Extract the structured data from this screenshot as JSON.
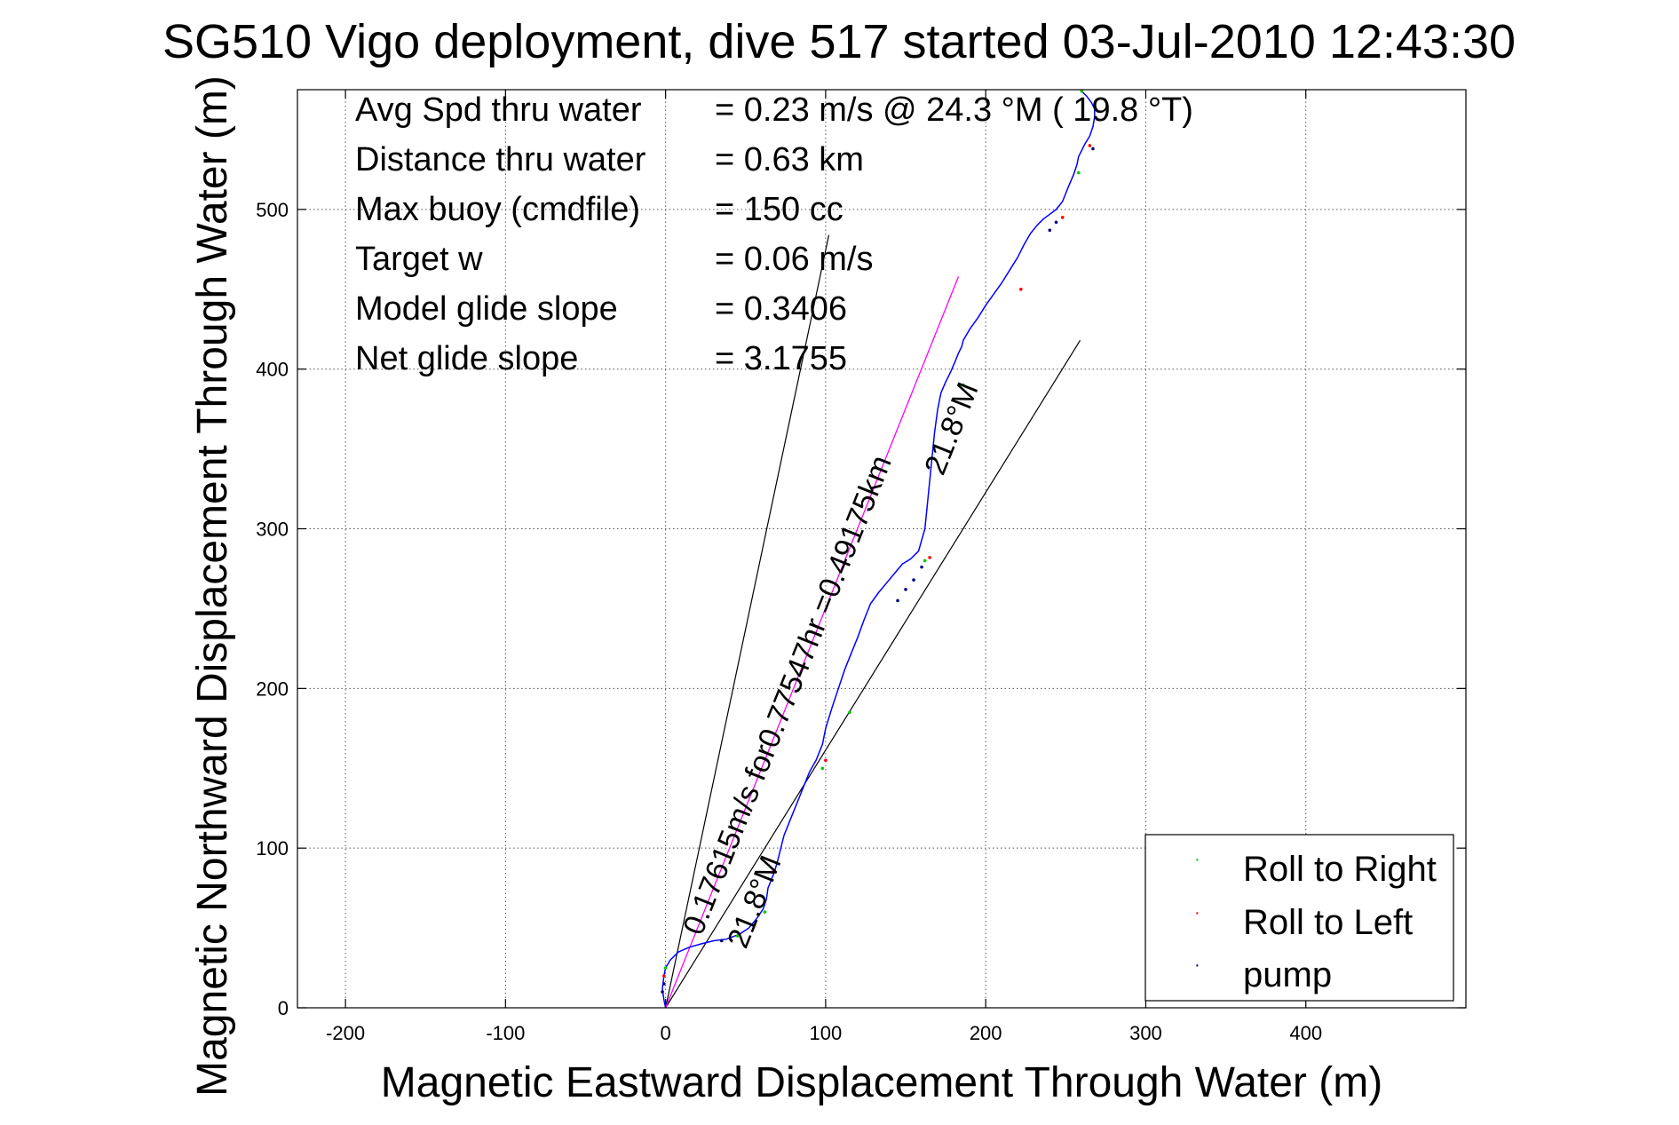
{
  "colors": {
    "track": "#0000ff",
    "target_line": "#ff00ff",
    "roll_right": "#00cc00",
    "roll_left": "#ff0000",
    "pump": "#000080",
    "reference_lines": "#000000",
    "grid": "#555555"
  },
  "chart_data": {
    "type": "line",
    "title": "SG510 Vigo deployment, dive 517 started 03-Jul-2010 12:43:30",
    "xlabel": "Magnetic Eastward Displacement Through Water (m)",
    "ylabel": "Magnetic Northward Displacement Through Water (m)",
    "xlim": [
      -230,
      500
    ],
    "ylim": [
      0,
      575
    ],
    "xticks": [
      -200,
      -100,
      0,
      100,
      200,
      300,
      400
    ],
    "yticks": [
      0,
      100,
      200,
      300,
      400,
      500
    ],
    "xtick_labels": [
      "-200",
      "-100",
      "0",
      "100",
      "200",
      "300",
      "400"
    ],
    "ytick_labels": [
      "0",
      "100",
      "200",
      "300",
      "400",
      "500"
    ],
    "grid": true,
    "legend_position": "bottom-right",
    "annotations": [
      {
        "label": "Avg Spd thru water",
        "value": "=  0.23 m/s @  24.3 °M ( 19.8 °T)"
      },
      {
        "label": "Distance thru water",
        "value": "=  0.63 km"
      },
      {
        "label": "Max buoy (cmdfile)",
        "value": "= 150 cc"
      },
      {
        "label": "Target w",
        "value": "= 0.06 m/s"
      },
      {
        "label": "Model glide slope",
        "value": "= 0.3406"
      },
      {
        "label": "Net glide slope",
        "value": "= 3.1755"
      }
    ],
    "line_labels": [
      {
        "text": "0.17615m/s for0.77547hr =0.49175km",
        "angle_deg": 21.8
      },
      {
        "text": "21.8°M",
        "angle_deg": 21.8
      },
      {
        "text": "21.8°M",
        "angle_deg": 21.8
      }
    ],
    "reference_lines": [
      {
        "x": [
          0,
          102
        ],
        "y": [
          0,
          484
        ]
      },
      {
        "x": [
          0,
          259
        ],
        "y": [
          0,
          418
        ]
      }
    ],
    "target_line": {
      "x": [
        0,
        183
      ],
      "y": [
        0,
        458
      ]
    },
    "series": [
      {
        "name": "track",
        "x": [
          0,
          -1,
          -2,
          -1,
          0,
          3,
          8,
          15,
          22,
          30,
          38,
          46,
          52,
          57,
          61,
          63,
          64,
          66,
          68,
          70,
          72,
          74,
          78,
          82,
          86,
          90,
          94,
          98,
          100,
          104,
          108,
          112,
          116,
          120,
          124,
          128,
          133,
          138,
          143,
          148,
          153,
          158,
          162,
          164,
          166,
          168,
          170,
          172,
          175,
          178,
          181,
          183,
          185,
          186,
          190,
          195,
          200,
          205,
          210,
          215,
          220,
          224,
          228,
          232,
          236,
          240,
          244,
          248,
          252,
          255,
          257,
          258,
          259,
          260,
          262,
          265,
          267,
          268,
          268,
          266,
          263,
          260
        ],
        "y": [
          0,
          5,
          12,
          20,
          25,
          30,
          35,
          38,
          40,
          42,
          43,
          46,
          50,
          56,
          62,
          68,
          75,
          80,
          85,
          92,
          100,
          108,
          118,
          128,
          138,
          148,
          155,
          165,
          175,
          188,
          200,
          212,
          222,
          232,
          243,
          253,
          260,
          266,
          272,
          278,
          281,
          286,
          300,
          320,
          340,
          360,
          375,
          385,
          392,
          398,
          405,
          410,
          414,
          418,
          425,
          432,
          440,
          447,
          454,
          462,
          470,
          478,
          485,
          490,
          494,
          497,
          500,
          505,
          515,
          522,
          528,
          533,
          535,
          537,
          541,
          546,
          552,
          558,
          563,
          567,
          571,
          574
        ]
      }
    ],
    "markers": {
      "roll_right": [
        [
          0,
          25
        ],
        [
          45,
          45
        ],
        [
          62,
          60
        ],
        [
          98,
          150
        ],
        [
          115,
          185
        ],
        [
          162,
          280
        ],
        [
          186,
          390
        ],
        [
          258,
          523
        ],
        [
          260,
          574
        ]
      ],
      "roll_left": [
        [
          -1,
          20
        ],
        [
          67,
          85
        ],
        [
          100,
          155
        ],
        [
          165,
          282
        ],
        [
          222,
          450
        ],
        [
          248,
          495
        ],
        [
          265,
          540
        ]
      ],
      "pump": [
        [
          -2,
          10
        ],
        [
          -1,
          15
        ],
        [
          35,
          42
        ],
        [
          145,
          255
        ],
        [
          150,
          262
        ],
        [
          155,
          268
        ],
        [
          160,
          276
        ],
        [
          240,
          487
        ],
        [
          244,
          492
        ],
        [
          267,
          538
        ]
      ]
    }
  },
  "legend": {
    "items": [
      {
        "label": "Roll to Right",
        "color": "#00cc00"
      },
      {
        "label": "Roll to Left",
        "color": "#ff0000"
      },
      {
        "label": "pump",
        "color": "#000080"
      }
    ]
  }
}
